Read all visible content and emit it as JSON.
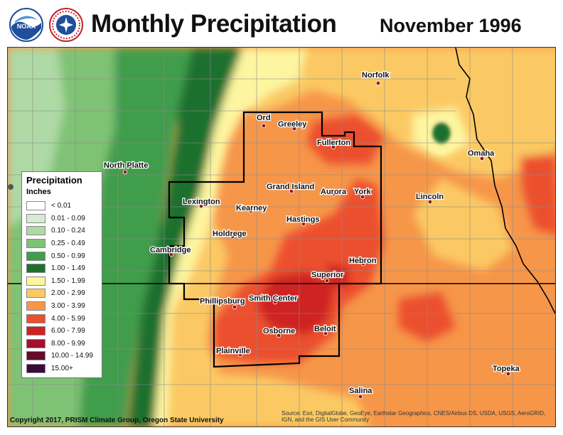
{
  "header": {
    "title": "Monthly Precipitation",
    "date": "November 1996",
    "logos": [
      "noaa-logo",
      "national-weather-service-logo"
    ],
    "logo_text": [
      "NOAA",
      "NATIONAL WEATHER SERVICE"
    ]
  },
  "legend": {
    "title": "Precipitation",
    "units": "Inches",
    "items": [
      {
        "label": "< 0.01",
        "color": "#ffffff"
      },
      {
        "label": "0.01 - 0.09",
        "color": "#d6ecd2"
      },
      {
        "label": "0.10 - 0.24",
        "color": "#afd9a5"
      },
      {
        "label": "0.25 - 0.49",
        "color": "#7fc275"
      },
      {
        "label": "0.50 - 0.99",
        "color": "#3f9d4b"
      },
      {
        "label": "1.00 - 1.49",
        "color": "#1d6f2e"
      },
      {
        "label": "1.50 - 1.99",
        "color": "#fdf5a0"
      },
      {
        "label": "2.00 - 2.99",
        "color": "#fbc964"
      },
      {
        "label": "3.00 - 3.99",
        "color": "#f69649"
      },
      {
        "label": "4.00 - 5.99",
        "color": "#ec4f2d"
      },
      {
        "label": "6.00 - 7.99",
        "color": "#cf2024"
      },
      {
        "label": "8.00 - 9.99",
        "color": "#a2102e"
      },
      {
        "label": "10.00 - 14.99",
        "color": "#640b2b"
      },
      {
        "label": "15.00+",
        "color": "#3b0a3c"
      }
    ]
  },
  "cities": [
    {
      "name": "Norfolk",
      "label": "Norfolk"
    },
    {
      "name": "Ord",
      "label": "Ord"
    },
    {
      "name": "Greeley",
      "label": "Greeley"
    },
    {
      "name": "Fullerton",
      "label": "Fullerton"
    },
    {
      "name": "Omaha",
      "label": "Omaha"
    },
    {
      "name": "North Platte",
      "label": "North Platte"
    },
    {
      "name": "Grand Island",
      "label": "Grand Island"
    },
    {
      "name": "Aurora",
      "label": "Aurora"
    },
    {
      "name": "York",
      "label": "York"
    },
    {
      "name": "Lexington",
      "label": "Lexington"
    },
    {
      "name": "Kearney",
      "label": "Kearney"
    },
    {
      "name": "Lincoln",
      "label": "Lincoln"
    },
    {
      "name": "Hastings",
      "label": "Hastings"
    },
    {
      "name": "Holdrege",
      "label": "Holdrege"
    },
    {
      "name": "Cambridge",
      "label": "Cambridge"
    },
    {
      "name": "Hebron",
      "label": "Hebron"
    },
    {
      "name": "Superior",
      "label": "Superior"
    },
    {
      "name": "Phillipsburg",
      "label": "Phillipsburg"
    },
    {
      "name": "Smith Center",
      "label": "Smith Center"
    },
    {
      "name": "Osborne",
      "label": "Osborne"
    },
    {
      "name": "Beloit",
      "label": "Beloit"
    },
    {
      "name": "Plainville",
      "label": "Plainville"
    },
    {
      "name": "Topeka",
      "label": "Topeka"
    },
    {
      "name": "Salina",
      "label": "Salina"
    }
  ],
  "footer": {
    "copyright": "Copyright 2017, PRISM Climate Group, Oregon State University",
    "source": "Source: Esri, DigitalGlobe, GeoEye, Earthstar Geographics, CNES/Airbus DS, USDA, USGS, AeroGRID, IGN, and the GIS User Community"
  },
  "colors": {
    "boundary": "#000000",
    "county_lines": "#8a8a8a",
    "city_marker": "#8b1a1a"
  }
}
